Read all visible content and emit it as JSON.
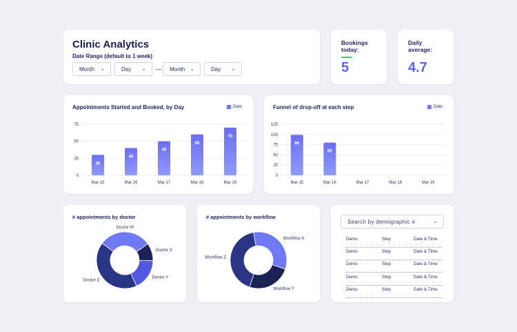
{
  "header": {
    "title": "Clinic Analytics",
    "date_range_label": "Date Range (default to 1 week)",
    "from_month": "Month",
    "from_day": "Day",
    "separator": "—",
    "to_month": "Month",
    "to_day": "Day"
  },
  "stats": {
    "bookings_label_1": "Bookings",
    "bookings_label_2": "today:",
    "bookings_value": "5",
    "average_label_1": "Daily",
    "average_label_2": "average:",
    "average_value": "4.7",
    "accent_color": "#5b63f0",
    "indicator_color": "#1fcf7c"
  },
  "charts": {
    "appointments": {
      "title": "Appointments Started and Booked, by Day",
      "legend": "Date"
    },
    "funnel": {
      "title": "Funnel of drop-off at each step",
      "legend": "Date"
    },
    "doctor": {
      "title": "# appointments by doctor"
    },
    "workflow": {
      "title": "# appointments by workflow"
    }
  },
  "chart_data": [
    {
      "type": "bar",
      "title": "Appointments Started and Booked, by Day",
      "categories": [
        "Mar 15",
        "Mar 16",
        "Mar 17",
        "Mar 18",
        "Mar 19"
      ],
      "series": [
        {
          "name": "Date",
          "values": [
            30,
            40,
            50,
            60,
            70
          ]
        }
      ],
      "yticks": [
        0,
        25,
        50,
        75
      ],
      "ylim": [
        0,
        75
      ],
      "grid": true,
      "legend_position": "top-right"
    },
    {
      "type": "bar",
      "title": "Funnel of drop-off at each step",
      "categories": [
        "Mar 15",
        "Mar 16",
        "Mar 17",
        "Mar 18",
        "Mar 19"
      ],
      "series": [
        {
          "name": "Date",
          "values": [
            99,
            80,
            null,
            null,
            null
          ]
        }
      ],
      "yticks": [
        0,
        25,
        50,
        75,
        100,
        125
      ],
      "ylim": [
        0,
        125
      ],
      "grid": true,
      "legend_position": "top-right"
    },
    {
      "type": "pie",
      "title": "# appointments by doctor",
      "labels": [
        "Doctor W",
        "Doctor X",
        "Doctor Y",
        "Doctor Z"
      ],
      "values": [
        30,
        10,
        18,
        42
      ],
      "colors": [
        "#6f78f5",
        "#1a2154",
        "#5058e0",
        "#2b3585"
      ]
    },
    {
      "type": "pie",
      "title": "# appointments by workflow",
      "labels": [
        "Workflow X",
        "Workflow Y",
        "Workflow Z"
      ],
      "values": [
        33,
        25,
        42
      ],
      "colors": [
        "#6f78f5",
        "#1a2154",
        "#2b3585"
      ]
    }
  ],
  "table": {
    "search_placeholder": "Search by demographic #",
    "rows": [
      {
        "col1": "Demo",
        "col2": "Step",
        "col3": "Date & Time"
      },
      {
        "col1": "Demo",
        "col2": "Step",
        "col3": "Date & Time"
      },
      {
        "col1": "Demo",
        "col2": "Step",
        "col3": "Date & Time"
      },
      {
        "col1": "Demo",
        "col2": "Step",
        "col3": "Date & Time"
      },
      {
        "col1": "Demo",
        "col2": "Step",
        "col3": "Date & Time"
      }
    ]
  }
}
